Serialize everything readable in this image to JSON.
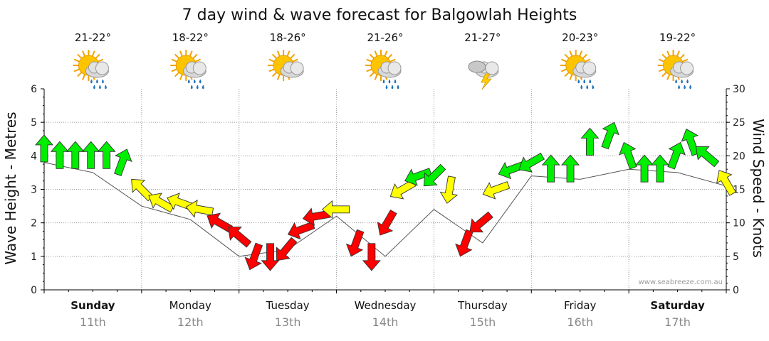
{
  "chart_data": {
    "type": "line",
    "title": "7 day wind & wave forecast for Balgowlah Heights",
    "ylabel_left": "Wave Height - Metres",
    "ylabel_right": "Wind Speed - Knots",
    "ylim_left": [
      0,
      6
    ],
    "ylim_right": [
      0,
      30
    ],
    "yticks_left": [
      "0",
      "1",
      "2",
      "3",
      "4",
      "5",
      "6"
    ],
    "yticks_right": [
      "0",
      "5",
      "10",
      "15",
      "20",
      "25",
      "30"
    ],
    "watermark": "www.seabreeze.com.au",
    "legend_colors": {
      "strong": "#00ee00",
      "moderate": "#ffff00",
      "light": "#ff0000"
    },
    "days": [
      {
        "day": "Sunday",
        "date": "11th",
        "temp": "21-22°",
        "bold": true,
        "icon": "sun-cloud-rain-icon"
      },
      {
        "day": "Monday",
        "date": "12th",
        "temp": "18-22°",
        "bold": false,
        "icon": "sun-cloud-rain-icon"
      },
      {
        "day": "Tuesday",
        "date": "13th",
        "temp": "18-26°",
        "bold": false,
        "icon": "sun-cloud-icon"
      },
      {
        "day": "Wednesday",
        "date": "14th",
        "temp": "21-26°",
        "bold": false,
        "icon": "sun-cloud-rain-icon"
      },
      {
        "day": "Thursday",
        "date": "15th",
        "temp": "21-27°",
        "bold": false,
        "icon": "storm-icon"
      },
      {
        "day": "Friday",
        "date": "16th",
        "temp": "20-23°",
        "bold": false,
        "icon": "sun-cloud-rain-icon"
      },
      {
        "day": "Saturday",
        "date": "17th",
        "temp": "19-22°",
        "bold": true,
        "icon": "sun-cloud-rain-icon"
      }
    ],
    "wave_series": {
      "name": "Wave Height (m)",
      "x_days": [
        0,
        0.5,
        1,
        1.5,
        2,
        2.5,
        3,
        3.5,
        4,
        4.5,
        5,
        5.5,
        6,
        6.5,
        7
      ],
      "values": [
        3.8,
        3.5,
        2.5,
        2.1,
        1.0,
        1.2,
        2.2,
        1.0,
        2.4,
        1.4,
        3.4,
        3.3,
        3.6,
        3.5,
        3.1
      ]
    },
    "wind_series": {
      "name": "Wind Speed (kn)",
      "x_days": [
        0.0,
        0.16,
        0.32,
        0.48,
        0.64,
        0.8,
        1.0,
        1.2,
        1.4,
        1.6,
        1.8,
        2.0,
        2.16,
        2.32,
        2.48,
        2.64,
        2.8,
        3.0,
        3.2,
        3.36,
        3.52,
        3.68,
        3.84,
        4.0,
        4.16,
        4.32,
        4.48,
        4.64,
        4.8,
        5.0,
        5.2,
        5.4,
        5.6,
        5.8,
        6.0,
        6.16,
        6.32,
        6.48,
        6.64,
        6.8,
        7.0
      ],
      "speeds": [
        21,
        20,
        20,
        20,
        20,
        19,
        15,
        13,
        13,
        12,
        10,
        8,
        5,
        5,
        6,
        9,
        11,
        12,
        7,
        5,
        10,
        15,
        17,
        17,
        15,
        7,
        10,
        15,
        18,
        19,
        18,
        18,
        22,
        23,
        20,
        18,
        18,
        20,
        22,
        20,
        16
      ],
      "dir_deg": [
        0,
        0,
        0,
        0,
        0,
        20,
        315,
        300,
        290,
        280,
        300,
        310,
        200,
        180,
        220,
        250,
        260,
        270,
        200,
        180,
        210,
        240,
        250,
        225,
        190,
        200,
        230,
        250,
        250,
        240,
        0,
        0,
        0,
        20,
        340,
        0,
        0,
        20,
        340,
        310,
        330
      ]
    }
  }
}
